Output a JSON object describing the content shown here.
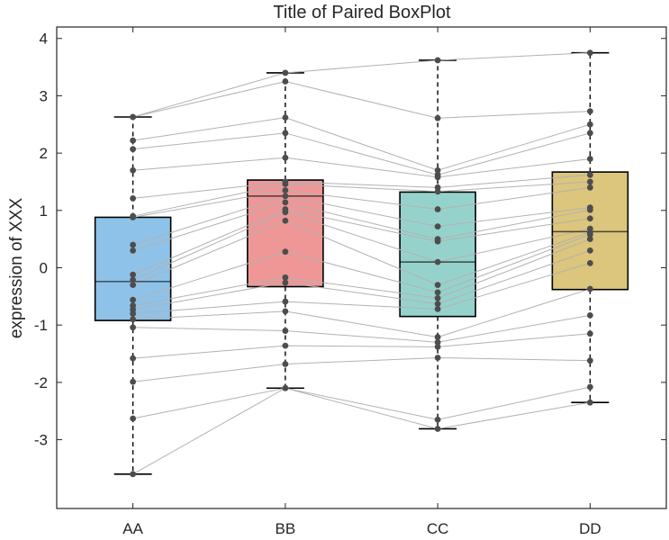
{
  "chart_data": {
    "type": "box",
    "title": "Title of Paired BoxPlot",
    "xlabel": "",
    "ylabel": "expression of XXX",
    "categories": [
      "AA",
      "BB",
      "CC",
      "DD"
    ],
    "ylim": [
      -4.2,
      4.2
    ],
    "yticks": [
      -3,
      -2,
      -1,
      0,
      1,
      2,
      3,
      4
    ],
    "ytick_labels": [
      "-3",
      "-2",
      "-1",
      "0",
      "1",
      "2",
      "3",
      "4"
    ],
    "colors": {
      "box_fills": [
        "#8fc2e8",
        "#ef9797",
        "#96d2cc",
        "#dcc57c"
      ],
      "box_edge": "#000000",
      "points": "#4d4d4d",
      "pair_lines": "#b2b2b2",
      "axis": "#262626"
    },
    "boxes": [
      {
        "category": "AA",
        "whisker_low": -3.6,
        "q1": -0.92,
        "median": -0.24,
        "q3": 0.88,
        "whisker_high": 2.63
      },
      {
        "category": "BB",
        "whisker_low": -2.1,
        "q1": -0.33,
        "median": 1.25,
        "q3": 1.53,
        "whisker_high": 3.4
      },
      {
        "category": "CC",
        "whisker_low": -2.81,
        "q1": -0.85,
        "median": 0.1,
        "q3": 1.32,
        "whisker_high": 3.62
      },
      {
        "category": "DD",
        "whisker_low": -2.35,
        "q1": -0.38,
        "median": 0.63,
        "q3": 1.67,
        "whisker_high": 3.75
      }
    ],
    "paired_series": [
      {
        "values": [
          -3.6,
          -2.1,
          -2.81,
          -2.35
        ]
      },
      {
        "values": [
          -2.63,
          -2.1,
          -2.65,
          -2.08
        ]
      },
      {
        "values": [
          -1.99,
          -1.68,
          -1.57,
          -1.62
        ]
      },
      {
        "values": [
          -1.58,
          -1.36,
          -1.38,
          -1.15
        ]
      },
      {
        "values": [
          -1.04,
          -1.1,
          -1.3,
          -0.83
        ]
      },
      {
        "values": [
          -0.9,
          -0.76,
          -1.21,
          -0.37
        ]
      },
      {
        "values": [
          -0.8,
          -0.59,
          -0.72,
          0.08
        ]
      },
      {
        "values": [
          -0.73,
          -0.26,
          -0.63,
          0.3
        ]
      },
      {
        "values": [
          -0.66,
          -0.17,
          -0.53,
          0.5
        ]
      },
      {
        "values": [
          -0.56,
          0.28,
          -0.43,
          0.58
        ]
      },
      {
        "values": [
          -0.3,
          0.82,
          -0.3,
          0.62
        ]
      },
      {
        "values": [
          -0.21,
          0.97,
          0.1,
          0.68
        ]
      },
      {
        "values": [
          -0.12,
          1.02,
          0.46,
          0.86
        ]
      },
      {
        "values": [
          0.3,
          1.14,
          0.5,
          1.01
        ]
      },
      {
        "values": [
          0.4,
          1.25,
          0.72,
          1.05
        ]
      },
      {
        "values": [
          0.88,
          1.35,
          1.02,
          1.4
        ]
      },
      {
        "values": [
          0.9,
          1.46,
          1.33,
          1.5
        ]
      },
      {
        "values": [
          1.21,
          1.5,
          1.4,
          1.62
        ]
      },
      {
        "values": [
          1.7,
          1.92,
          1.58,
          1.9
        ]
      },
      {
        "values": [
          2.07,
          2.35,
          1.62,
          2.35
        ]
      },
      {
        "values": [
          2.22,
          2.62,
          1.7,
          2.5
        ]
      },
      {
        "values": [
          2.63,
          3.25,
          2.61,
          2.73
        ]
      },
      {
        "values": [
          2.63,
          3.4,
          3.62,
          3.75
        ]
      }
    ]
  }
}
